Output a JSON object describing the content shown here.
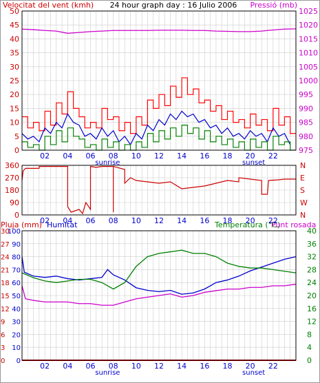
{
  "colors": {
    "wind": "#ff0000",
    "wind_avg": "#0000cc",
    "wind_low": "#008000",
    "pressure": "#cc00cc",
    "direction": "#cc0000",
    "rain": "#cc0000",
    "humidity": "#0000cc",
    "temperature": "#008000",
    "dewpoint": "#cc00cc",
    "grid": "#cccccc",
    "frame": "#000000"
  },
  "chart_data": [
    {
      "type": "line",
      "title": "24 hour graph day : 16 Julio 2006",
      "left_label": "Velocitat del vent (kmh)",
      "right_label": "Pressió (mb)",
      "x_ticks": [
        "02",
        "04",
        "06",
        "08",
        "10",
        "12",
        "14",
        "16",
        "18",
        "20",
        "22"
      ],
      "x_events": [
        "sunrise",
        "sunset"
      ],
      "y_left_ticks": [
        "0",
        "5",
        "10",
        "15",
        "20",
        "25",
        "30",
        "35",
        "40",
        "45",
        "50"
      ],
      "y_left_range": [
        0,
        50
      ],
      "y_right_ticks": [
        "975",
        "980",
        "985",
        "990",
        "995",
        "1000",
        "1005",
        "1010",
        "1015",
        "1020",
        "1025"
      ],
      "y_right_range": [
        975,
        1025
      ],
      "series": [
        {
          "key": "pressure",
          "axis": "right",
          "x": [
            0,
            1,
            2,
            3,
            4,
            5,
            6,
            7,
            8,
            9,
            10,
            11,
            12,
            13,
            14,
            15,
            16,
            17,
            18,
            19,
            20,
            21,
            22,
            23,
            24
          ],
          "values": [
            1018.5,
            1018.3,
            1018.0,
            1017.8,
            1017.0,
            1017.3,
            1017.6,
            1017.8,
            1018.0,
            1018.0,
            1018.0,
            1018.0,
            1018.1,
            1018.1,
            1018.1,
            1018.0,
            1018.0,
            1017.8,
            1017.7,
            1017.6,
            1017.6,
            1017.8,
            1018.2,
            1018.5,
            1018.6
          ]
        },
        {
          "key": "wind",
          "axis": "left",
          "step": true,
          "x": [
            0,
            0.5,
            1,
            1.5,
            2,
            2.5,
            3,
            3.5,
            4,
            4.5,
            5,
            5.5,
            6,
            6.5,
            7,
            7.5,
            8,
            8.5,
            9,
            9.5,
            10,
            10.5,
            11,
            11.5,
            12,
            12.5,
            13,
            13.5,
            14,
            14.5,
            15,
            15.5,
            16,
            16.5,
            17,
            17.5,
            18,
            18.5,
            19,
            19.5,
            20,
            20.5,
            21,
            21.5,
            22,
            22.5,
            23,
            23.5
          ],
          "values": [
            12,
            8,
            10,
            7,
            14,
            9,
            17,
            13,
            21,
            15,
            12,
            8,
            10,
            8,
            15,
            11,
            12,
            7,
            10,
            6,
            12,
            9,
            18,
            15,
            20,
            16,
            23,
            19,
            26,
            20,
            22,
            17,
            18,
            14,
            16,
            11,
            14,
            10,
            11,
            8,
            13,
            9,
            11,
            7,
            15,
            9,
            12,
            6
          ]
        },
        {
          "key": "wind_avg",
          "axis": "left",
          "x": [
            0,
            0.5,
            1,
            1.5,
            2,
            2.5,
            3,
            3.5,
            4,
            4.5,
            5,
            5.5,
            6,
            6.5,
            7,
            7.5,
            8,
            8.5,
            9,
            9.5,
            10,
            10.5,
            11,
            11.5,
            12,
            12.5,
            13,
            13.5,
            14,
            14.5,
            15,
            15.5,
            16,
            16.5,
            17,
            17.5,
            18,
            18.5,
            19,
            19.5,
            20,
            20.5,
            21,
            21.5,
            22,
            22.5,
            23,
            23.5
          ],
          "values": [
            6,
            4,
            5,
            3,
            8,
            6,
            10,
            8,
            13,
            10,
            9,
            5,
            6,
            4,
            8,
            5,
            7,
            3,
            5,
            2,
            6,
            4,
            9,
            7,
            11,
            9,
            13,
            11,
            14,
            12,
            13,
            10,
            11,
            8,
            9,
            6,
            8,
            5,
            6,
            4,
            7,
            5,
            6,
            3,
            8,
            5,
            6,
            2
          ]
        },
        {
          "key": "wind_low",
          "axis": "left",
          "step": true,
          "x": [
            0,
            0.5,
            1,
            1.5,
            2,
            2.5,
            3,
            3.5,
            4,
            4.5,
            5,
            5.5,
            6,
            6.5,
            7,
            7.5,
            8,
            8.5,
            9,
            9.5,
            10,
            10.5,
            11,
            11.5,
            12,
            12.5,
            13,
            13.5,
            14,
            14.5,
            15,
            15.5,
            16,
            16.5,
            17,
            17.5,
            18,
            18.5,
            19,
            19.5,
            20,
            20.5,
            21,
            21.5,
            22,
            22.5,
            23,
            23.5
          ],
          "values": [
            3,
            1,
            2,
            0,
            5,
            2,
            7,
            3,
            8,
            5,
            4,
            1,
            2,
            0,
            4,
            1,
            3,
            0,
            2,
            0,
            3,
            1,
            6,
            3,
            7,
            4,
            8,
            5,
            9,
            6,
            8,
            4,
            7,
            3,
            5,
            2,
            4,
            1,
            3,
            0,
            4,
            1,
            3,
            0,
            5,
            2,
            3,
            0
          ]
        }
      ]
    },
    {
      "type": "line",
      "title": "",
      "x_ticks": [
        "02",
        "04",
        "06",
        "08",
        "10",
        "12",
        "14",
        "16",
        "18",
        "20",
        "22"
      ],
      "y_left_ticks": [
        "0",
        "90",
        "180",
        "270",
        "360"
      ],
      "y_left_range": [
        0,
        360
      ],
      "y_right_ticks": [
        "N",
        "W",
        "S",
        "E",
        "N"
      ],
      "series": [
        {
          "key": "direction",
          "axis": "left",
          "x": [
            0,
            0.1,
            0.3,
            1.5,
            1.5,
            2.5,
            4,
            4,
            4.3,
            5,
            5.3,
            5.6,
            6,
            6,
            6.5,
            7,
            8,
            8,
            8,
            9,
            9,
            9.5,
            10,
            11,
            12,
            13,
            14,
            15,
            16,
            17,
            18,
            19,
            19,
            20,
            21,
            21,
            21.5,
            21.6,
            22.5,
            23,
            24
          ],
          "values": [
            250,
            320,
            338,
            338,
            352,
            352,
            352,
            60,
            20,
            40,
            10,
            90,
            40,
            352,
            345,
            352,
            352,
            20,
            352,
            330,
            230,
            270,
            250,
            240,
            230,
            240,
            190,
            200,
            210,
            230,
            250,
            240,
            270,
            260,
            250,
            150,
            150,
            250,
            255,
            260,
            260
          ]
        }
      ]
    },
    {
      "type": "line",
      "title": "",
      "left_label_1": "Pluja (mm)",
      "left_label_2": "Humitat",
      "right_label_1": "Temperatura (°C)",
      "right_label_2": "Punt rosada",
      "x_ticks": [
        "02",
        "04",
        "06",
        "08",
        "10",
        "12",
        "14",
        "16",
        "18",
        "20",
        "22"
      ],
      "x_events": [
        "sunrise",
        "sunset"
      ],
      "y_rain_ticks": [
        "0",
        "3",
        "6",
        "9",
        "12",
        "15",
        "18",
        "21",
        "24",
        "27",
        "30"
      ],
      "y_rain_range": [
        0,
        30
      ],
      "y_humidity_ticks": [
        "0",
        "10",
        "20",
        "30",
        "40",
        "50",
        "60",
        "70",
        "80",
        "90",
        "100"
      ],
      "y_humidity_range": [
        0,
        100
      ],
      "y_temp_ticks": [
        "0",
        "4",
        "8",
        "12",
        "16",
        "20",
        "24",
        "28",
        "32",
        "36",
        "40"
      ],
      "y_temp_range": [
        0,
        40
      ],
      "series": [
        {
          "key": "rain",
          "axis": "rain",
          "x": [
            0,
            24
          ],
          "values": [
            0,
            0
          ]
        },
        {
          "key": "humidity",
          "axis": "humidity",
          "x": [
            0,
            0.2,
            1,
            2,
            3,
            4,
            5,
            6,
            7,
            7.5,
            8,
            9,
            10,
            11,
            12,
            13,
            14,
            15,
            16,
            17,
            18,
            19,
            20,
            21,
            22,
            23,
            24
          ],
          "values": [
            80,
            68,
            65,
            64,
            65,
            63,
            62,
            63,
            64,
            70,
            66,
            62,
            56,
            54,
            53,
            54,
            51,
            52,
            55,
            60,
            62,
            65,
            69,
            72,
            75,
            78,
            80
          ]
        },
        {
          "key": "temperature",
          "axis": "temp",
          "x": [
            0,
            1,
            2,
            3,
            4,
            5,
            6,
            7,
            8,
            9,
            10,
            11,
            12,
            13,
            14,
            15,
            16,
            17,
            18,
            19,
            20,
            21,
            22,
            23,
            24
          ],
          "values": [
            27,
            25.5,
            24.5,
            24,
            24.5,
            25,
            25,
            24,
            22,
            24,
            29,
            32,
            33,
            33.5,
            34,
            33,
            33,
            32,
            30,
            29,
            28.5,
            28.5,
            28,
            27.5,
            27
          ]
        },
        {
          "key": "dewpoint",
          "axis": "temp",
          "x": [
            0,
            0.3,
            1,
            2,
            3,
            4,
            5,
            6,
            7,
            8,
            9,
            10,
            11,
            12,
            13,
            14,
            15,
            16,
            17,
            18,
            19,
            20,
            21,
            22,
            23,
            24
          ],
          "values": [
            23,
            19,
            18.5,
            18,
            18,
            18,
            17.5,
            17.5,
            17,
            17,
            18,
            19,
            19.5,
            20,
            20.5,
            19.5,
            20,
            21,
            21.5,
            22,
            22,
            22.5,
            22.5,
            23,
            23,
            23.5
          ]
        }
      ]
    }
  ]
}
